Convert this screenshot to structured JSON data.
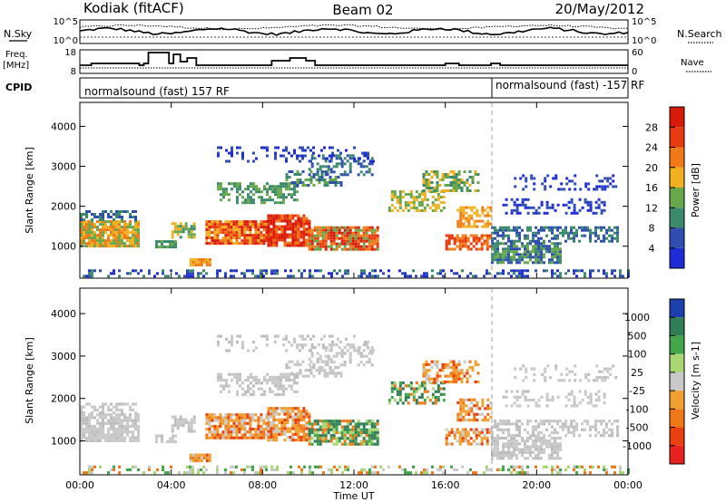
{
  "header": {
    "station": "Kodiak (fitACF)",
    "beam": "Beam 02",
    "date": "20/May/2012"
  },
  "strips": {
    "nsky_label": "N.Sky",
    "nsky_top": "10^5",
    "nsky_bottom": "10^0",
    "nsearch_label": "N.Search",
    "nsearch_top": "10^5",
    "nsearch_bottom": "10^0",
    "freq_label_1": "Freq.",
    "freq_label_2": "[MHz]",
    "freq_top": "18",
    "freq_bottom": "8",
    "nave_top": "60",
    "nave_bottom": "0",
    "nave_label": "Nave",
    "cpid_label": "CPID",
    "cpid_left": "normalsound (fast) 157 RF",
    "cpid_right": "normalsound (fast) -157 RF"
  },
  "chart_data": [
    {
      "type": "heatmap",
      "name": "power",
      "ylabel": "Slant Range [km]",
      "ylim": [
        200,
        4600
      ],
      "y_ticks": [
        "1000",
        "2000",
        "3000",
        "4000"
      ],
      "x_ticks": [
        "00:00",
        "04:00",
        "08:00",
        "12:00",
        "16:00",
        "20:00",
        "00:00"
      ],
      "colorbar": {
        "label": "Power [dB]",
        "ticks": [
          "4",
          "8",
          "12",
          "16",
          "20",
          "24",
          "28"
        ],
        "range": [
          0,
          32
        ],
        "colors": [
          "#1f2bd6",
          "#2f4fb0",
          "#3b8a6e",
          "#66a84a",
          "#f0b020",
          "#f07a18",
          "#e83a10",
          "#d81a0a"
        ]
      }
    },
    {
      "type": "heatmap",
      "name": "velocity",
      "ylabel": "Slant Range [km]",
      "ylim": [
        200,
        4600
      ],
      "y_ticks": [
        "1000",
        "2000",
        "3000",
        "4000"
      ],
      "x_ticks": [
        "00:00",
        "04:00",
        "08:00",
        "12:00",
        "16:00",
        "20:00",
        "00:00"
      ],
      "xlabel": "Time UT",
      "colorbar": {
        "label": "Velocity [m s-1]",
        "ticks": [
          "1000",
          "500",
          "100",
          "25",
          "-25",
          "-100",
          "-500",
          "-1000"
        ],
        "colors": [
          "#1c3fae",
          "#2f7e55",
          "#44a64a",
          "#a8d670",
          "#c9c9c9",
          "#f0a030",
          "#f07818",
          "#e84010",
          "#e82020"
        ]
      }
    }
  ]
}
